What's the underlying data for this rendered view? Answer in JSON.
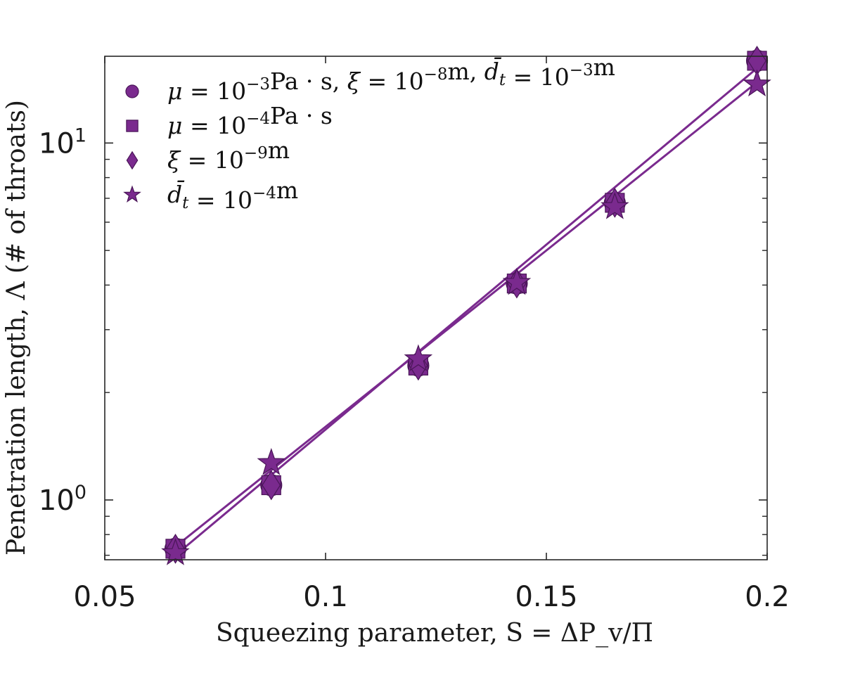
{
  "chart_data": {
    "type": "line",
    "title": "",
    "xlabel": "Squeezing parameter, S = ΔP_v/Π",
    "ylabel": "Penetration length, Λ (# of throats)",
    "yscale": "log",
    "xlim": [
      0.05,
      0.2
    ],
    "ylim": [
      0.68,
      17.5
    ],
    "x_ticks": [
      0.05,
      0.1,
      0.15,
      0.2
    ],
    "x_tick_labels": [
      "0.05",
      "0.1",
      "0.15",
      "0.2"
    ],
    "y_ticks": [
      {
        "value": 1,
        "base": "10",
        "exp": "0"
      },
      {
        "value": 10,
        "base": "10",
        "exp": "1"
      }
    ],
    "color": "#7a2a8e",
    "series": [
      {
        "name": "μ = 10^-3 Pa·s, ξ = 10^-8 m, d̄_t = 10^-3 m",
        "marker": "circle",
        "x": [
          0.066,
          0.0877,
          0.121,
          0.1433,
          0.1655,
          0.1977
        ],
        "y": [
          0.73,
          1.1,
          2.38,
          4.04,
          6.8,
          17.0
        ],
        "fit": [
          0.7,
          16.2
        ]
      },
      {
        "name": "μ = 10^-4 Pa·s",
        "marker": "square",
        "x": [
          0.066,
          0.0877,
          0.121,
          0.1433,
          0.1655,
          0.1977
        ],
        "y": [
          0.73,
          1.1,
          2.38,
          4.04,
          6.8,
          17.0
        ],
        "fit": [
          0.7,
          16.2
        ]
      },
      {
        "name": "ξ = 10^-9 m",
        "marker": "diamond",
        "x": [
          0.066,
          0.0877,
          0.121,
          0.1433,
          0.1655,
          0.1977
        ],
        "y": [
          0.73,
          1.1,
          2.38,
          4.04,
          6.8,
          17.0
        ],
        "fit": [
          0.7,
          16.2
        ]
      },
      {
        "name": "d̄_t = 10^-4 m",
        "marker": "star",
        "x": [
          0.066,
          0.0877,
          0.121,
          0.1433,
          0.1655,
          0.1977
        ],
        "y": [
          0.71,
          1.27,
          2.48,
          4.06,
          6.62,
          14.6
        ],
        "fit": [
          0.74,
          14.8
        ]
      }
    ],
    "legend": {
      "position": "top-left",
      "items": [
        {
          "marker": "circle",
          "parts": [
            [
              "μ",
              "it"
            ],
            [
              " = 10",
              ""
            ],
            [
              "−3",
              "sup"
            ],
            [
              "Pa · s, ",
              ""
            ],
            [
              "ξ",
              "it"
            ],
            [
              " = 10",
              ""
            ],
            [
              "−8",
              "sup"
            ],
            [
              "m, ",
              ""
            ],
            [
              "d̄",
              "it"
            ],
            [
              "t",
              "sub"
            ],
            [
              " = 10",
              ""
            ],
            [
              "−3",
              "sup"
            ],
            [
              "m",
              ""
            ]
          ]
        },
        {
          "marker": "square",
          "parts": [
            [
              "μ",
              "it"
            ],
            [
              " = 10",
              ""
            ],
            [
              "−4",
              "sup"
            ],
            [
              "Pa · s",
              ""
            ]
          ]
        },
        {
          "marker": "diamond",
          "parts": [
            [
              "ξ",
              "it"
            ],
            [
              " = 10",
              ""
            ],
            [
              "−9",
              "sup"
            ],
            [
              "m",
              ""
            ]
          ]
        },
        {
          "marker": "star",
          "parts": [
            [
              "d̄",
              "it"
            ],
            [
              "t",
              "sub"
            ],
            [
              " = 10",
              ""
            ],
            [
              "−4",
              "sup"
            ],
            [
              "m",
              ""
            ]
          ]
        }
      ]
    }
  }
}
